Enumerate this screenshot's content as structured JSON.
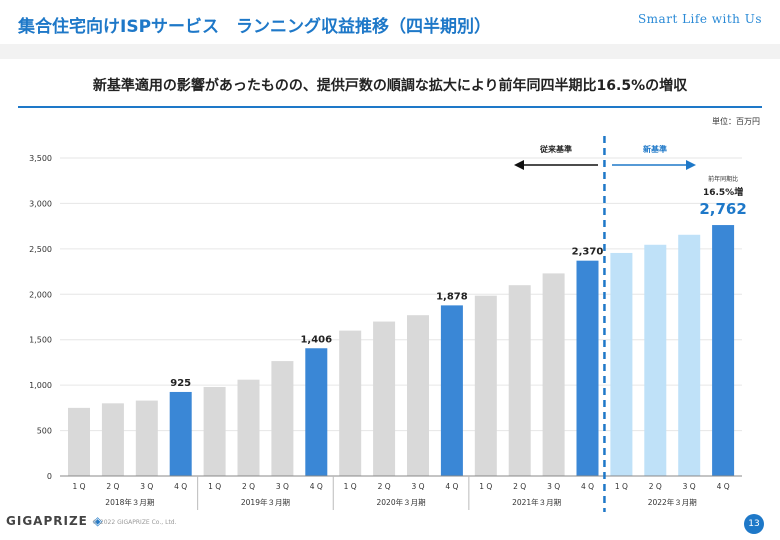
{
  "header": {
    "title": "集合住宅向けISPサービス　ランニング収益推移（四半期別）",
    "tagline": "Smart Life with Us"
  },
  "subtitle": "新基準適用の影響があったものの、提供戸数の順調な拡大により前年同四半期比16.5%の増収",
  "unit": "単位：百万円",
  "colors": {
    "accent": "#1e78c8",
    "bar_gray": "#d9d9d9",
    "bar_highlight": "#3a87d6",
    "bar_light": "#bfe1f8"
  },
  "chart_data": {
    "type": "bar",
    "ylim": [
      0,
      3500
    ],
    "yticks": [
      0,
      500,
      1000,
      1500,
      2000,
      2500,
      3000,
      3500
    ],
    "ytick_labels": [
      "0",
      "500",
      "1,000",
      "1,500",
      "2,000",
      "2,500",
      "3,000",
      "3,500"
    ],
    "grid": true,
    "categories": [
      "1Q",
      "2Q",
      "3Q",
      "4Q",
      "1Q",
      "2Q",
      "3Q",
      "4Q",
      "1Q",
      "2Q",
      "3Q",
      "4Q",
      "1Q",
      "2Q",
      "3Q",
      "4Q",
      "1Q",
      "2Q",
      "3Q",
      "4Q"
    ],
    "category_labels": [
      "1 Q",
      "2 Q",
      "3 Q",
      "4 Q",
      "1 Q",
      "2 Q",
      "3 Q",
      "4 Q",
      "1 Q",
      "2 Q",
      "3 Q",
      "4 Q",
      "1 Q",
      "2 Q",
      "3 Q",
      "4 Q",
      "1 Q",
      "2 Q",
      "3 Q",
      "4 Q"
    ],
    "values": [
      750,
      800,
      830,
      925,
      980,
      1060,
      1265,
      1406,
      1600,
      1700,
      1770,
      1878,
      1985,
      2100,
      2230,
      2370,
      2455,
      2545,
      2655,
      2762
    ],
    "bar_styles": [
      "gray",
      "gray",
      "gray",
      "highlight",
      "gray",
      "gray",
      "gray",
      "highlight",
      "gray",
      "gray",
      "gray",
      "highlight",
      "gray",
      "gray",
      "gray",
      "highlight",
      "light",
      "light",
      "light",
      "highlight"
    ],
    "data_labels": [
      {
        "index": 3,
        "text": "925"
      },
      {
        "index": 7,
        "text": "1,406"
      },
      {
        "index": 11,
        "text": "1,878"
      },
      {
        "index": 15,
        "text": "2,370"
      }
    ],
    "fiscal_years": [
      "2018年３月期",
      "2019年３月期",
      "2020年３月期",
      "2021年３月期",
      "2022年３月期"
    ],
    "annotations": {
      "old_standard": "従来基準",
      "new_standard": "新基準",
      "yoy_small": "前年同期比",
      "yoy_growth": "16.5%増",
      "latest_value": "2,762"
    }
  },
  "footer": {
    "logo": "GIGAPRIZE",
    "copyright": "© 2022 GIGAPRIZE Co., Ltd.",
    "page_number": "13"
  }
}
